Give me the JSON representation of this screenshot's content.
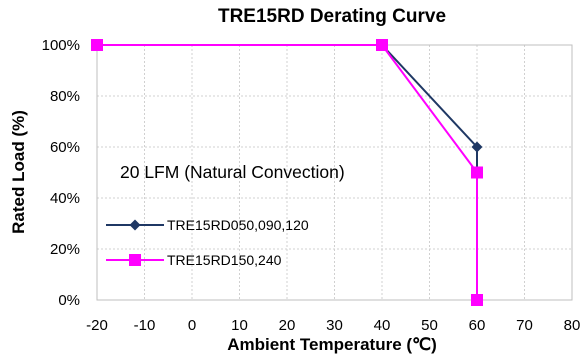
{
  "chart_data": {
    "type": "line",
    "title": "TRE15RD Derating Curve",
    "xlabel": "Ambient Temperature (℃)",
    "ylabel": "Rated Load (%)",
    "xlim": [
      -20,
      80
    ],
    "ylim": [
      0,
      100
    ],
    "x_ticks": [
      "-20",
      "-10",
      "0",
      "10",
      "20",
      "30",
      "40",
      "50",
      "60",
      "70",
      "80"
    ],
    "y_ticks": [
      "0%",
      "20%",
      "40%",
      "60%",
      "80%",
      "100%"
    ],
    "grid": true,
    "annotation": "20 LFM (Natural Convection)",
    "legend_position": "left",
    "series": [
      {
        "name": "TRE15RD050,090,120",
        "color": "#1f3864",
        "marker": "diamond",
        "x": [
          -20,
          40,
          60,
          60
        ],
        "y": [
          100,
          100,
          60,
          0
        ]
      },
      {
        "name": "TRE15RD150,240",
        "color": "#ff00ff",
        "marker": "square",
        "x": [
          -20,
          40,
          60,
          60
        ],
        "y": [
          100,
          100,
          50,
          0
        ]
      }
    ]
  }
}
